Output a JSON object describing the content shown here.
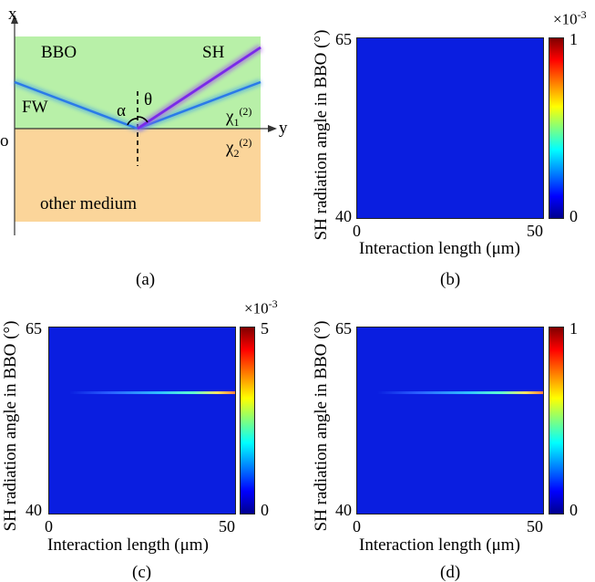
{
  "panel_a": {
    "caption": "(a)",
    "axis_x": "x",
    "axis_y": "y",
    "origin": "o",
    "bbo": "BBO",
    "sh": "SH",
    "fw": "FW",
    "alpha": "α",
    "theta": "θ",
    "chi1_base": "χ",
    "chi1_sub": "1",
    "chi1_sup": "(2)",
    "chi2_base": "χ",
    "chi2_sub": "2",
    "chi2_sup": "(2)",
    "other": "other medium",
    "colors": {
      "bbo": "#b8f0a8",
      "other": "#fbd59a",
      "fw": "#3a9cf0",
      "sh": "#8a3cf0"
    }
  },
  "panels": [
    {
      "id": "b",
      "caption": "(b)",
      "ylabel": "SH radiation angle in BBO (°)",
      "xlabel": "Interaction length (μm)",
      "y_top": "65",
      "y_bottom": "40",
      "x_left": "0",
      "x_right": "50",
      "cb_top": "1",
      "cb_bottom": "0",
      "cb_mult_base": "×10",
      "cb_mult_exp": "-3",
      "has_line": false
    },
    {
      "id": "c",
      "caption": "(c)",
      "ylabel": "SH radiation angle in BBO (°)",
      "xlabel": "Interaction length (μm)",
      "y_top": "65",
      "y_bottom": "40",
      "x_left": "0",
      "x_right": "50",
      "cb_top": "5",
      "cb_bottom": "0",
      "cb_mult_base": "×10",
      "cb_mult_exp": "-3",
      "has_line": true
    },
    {
      "id": "d",
      "caption": "(d)",
      "ylabel": "SH radiation angle in BBO (°)",
      "xlabel": "Interaction length (μm)",
      "y_top": "65",
      "y_bottom": "40",
      "x_left": "0",
      "x_right": "50",
      "cb_top": "1",
      "cb_bottom": "0",
      "cb_mult_base": "",
      "cb_mult_exp": "",
      "has_line": true
    }
  ]
}
